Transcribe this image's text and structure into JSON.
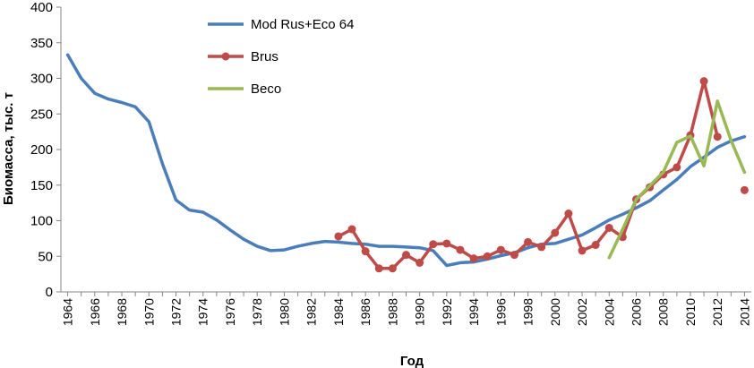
{
  "chart_data": {
    "type": "line",
    "xlabel": "Год",
    "ylabel": "Биомасса, тыс. т",
    "xlim": [
      1963.5,
      2014.5
    ],
    "ylim": [
      0,
      400
    ],
    "yticks": [
      0,
      50,
      100,
      150,
      200,
      250,
      300,
      350,
      400
    ],
    "xticks": [
      1964,
      1966,
      1968,
      1970,
      1972,
      1974,
      1976,
      1978,
      1980,
      1982,
      1984,
      1986,
      1988,
      1990,
      1992,
      1994,
      1996,
      1998,
      2000,
      2002,
      2004,
      2006,
      2008,
      2010,
      2012,
      2014
    ],
    "legend": "top-left",
    "grid": false,
    "series": [
      {
        "name": "Mod Rus+Eco 64",
        "color": "#4a7ebb",
        "marker": "none",
        "points": [
          [
            1964,
            333
          ],
          [
            1965,
            300
          ],
          [
            1966,
            279
          ],
          [
            1967,
            271
          ],
          [
            1968,
            266
          ],
          [
            1969,
            260
          ],
          [
            1970,
            239
          ],
          [
            1971,
            180
          ],
          [
            1972,
            129
          ],
          [
            1973,
            115
          ],
          [
            1974,
            112
          ],
          [
            1975,
            101
          ],
          [
            1976,
            87
          ],
          [
            1977,
            74
          ],
          [
            1978,
            64
          ],
          [
            1979,
            58
          ],
          [
            1980,
            59
          ],
          [
            1981,
            64
          ],
          [
            1982,
            68
          ],
          [
            1983,
            71
          ],
          [
            1984,
            70
          ],
          [
            1985,
            68
          ],
          [
            1986,
            67
          ],
          [
            1987,
            64
          ],
          [
            1988,
            64
          ],
          [
            1989,
            63
          ],
          [
            1990,
            62
          ],
          [
            1991,
            58
          ],
          [
            1992,
            37
          ],
          [
            1993,
            41
          ],
          [
            1994,
            42
          ],
          [
            1995,
            46
          ],
          [
            1996,
            51
          ],
          [
            1997,
            55
          ],
          [
            1998,
            62
          ],
          [
            1999,
            67
          ],
          [
            2000,
            68
          ],
          [
            2001,
            74
          ],
          [
            2002,
            80
          ],
          [
            2003,
            90
          ],
          [
            2004,
            101
          ],
          [
            2005,
            109
          ],
          [
            2006,
            118
          ],
          [
            2007,
            128
          ],
          [
            2008,
            143
          ],
          [
            2009,
            158
          ],
          [
            2010,
            176
          ],
          [
            2011,
            189
          ],
          [
            2012,
            203
          ],
          [
            2013,
            212
          ],
          [
            2014,
            218
          ]
        ]
      },
      {
        "name": "Brus",
        "color": "#be4b48",
        "marker": "circle",
        "segments": [
          [
            [
              1984,
              78
            ],
            [
              1985,
              88
            ],
            [
              1986,
              57
            ],
            [
              1987,
              33
            ],
            [
              1988,
              33
            ],
            [
              1989,
              52
            ],
            [
              1990,
              41
            ],
            [
              1991,
              67
            ],
            [
              1992,
              68
            ],
            [
              1993,
              59
            ],
            [
              1994,
              47
            ],
            [
              1995,
              50
            ],
            [
              1996,
              59
            ],
            [
              1997,
              52
            ],
            [
              1998,
              70
            ],
            [
              1999,
              63
            ],
            [
              2000,
              83
            ],
            [
              2001,
              110
            ],
            [
              2002,
              58
            ],
            [
              2003,
              66
            ],
            [
              2004,
              90
            ],
            [
              2005,
              77
            ],
            [
              2006,
              130
            ],
            [
              2007,
              147
            ],
            [
              2008,
              165
            ],
            [
              2009,
              175
            ],
            [
              2010,
              220
            ],
            [
              2011,
              296
            ],
            [
              2012,
              218
            ]
          ],
          [
            [
              2014,
              143
            ]
          ]
        ]
      },
      {
        "name": "Beco",
        "color": "#98b954",
        "marker": "none",
        "points": [
          [
            2004,
            48
          ],
          [
            2005,
            88
          ],
          [
            2006,
            130
          ],
          [
            2007,
            149
          ],
          [
            2008,
            168
          ],
          [
            2009,
            210
          ],
          [
            2010,
            219
          ],
          [
            2011,
            177
          ],
          [
            2012,
            268
          ],
          [
            2013,
            213
          ],
          [
            2014,
            168
          ]
        ]
      }
    ]
  }
}
